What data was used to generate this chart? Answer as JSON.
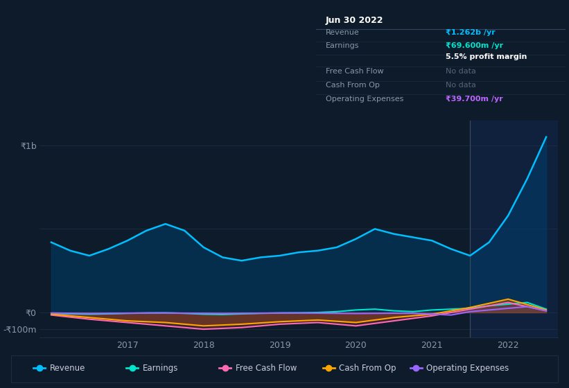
{
  "bg_color": "#0d1b2a",
  "tooltip_bg": "#0a0f1a",
  "title_date": "Jun 30 2022",
  "ylim": [
    -150000000,
    1150000000
  ],
  "yticks_labels": [
    "₹1b",
    "₹0",
    "-₹100m"
  ],
  "yticks_values": [
    1000000000,
    0,
    -100000000
  ],
  "xlabel_years": [
    "2017",
    "2018",
    "2019",
    "2020",
    "2021",
    "2022"
  ],
  "legend": [
    {
      "label": "Revenue",
      "color": "#00bfff"
    },
    {
      "label": "Earnings",
      "color": "#00e5cc"
    },
    {
      "label": "Free Cash Flow",
      "color": "#ff69b4"
    },
    {
      "label": "Cash From Op",
      "color": "#ffa500"
    },
    {
      "label": "Operating Expenses",
      "color": "#9966ff"
    }
  ],
  "revenue_color": "#00bfff",
  "earnings_color": "#00e5cc",
  "cashflow_color": "#ff69b4",
  "cashfromop_color": "#ffa500",
  "opex_color": "#9966ff",
  "vertical_line_x": 2021.5,
  "xlim": [
    2015.85,
    2022.65
  ],
  "revenue_x": [
    2016.0,
    2016.25,
    2016.5,
    2016.75,
    2017.0,
    2017.25,
    2017.5,
    2017.75,
    2018.0,
    2018.25,
    2018.5,
    2018.75,
    2019.0,
    2019.25,
    2019.5,
    2019.75,
    2020.0,
    2020.25,
    2020.5,
    2020.75,
    2021.0,
    2021.25,
    2021.5,
    2021.75,
    2022.0,
    2022.25,
    2022.5
  ],
  "revenue_y": [
    420000000,
    370000000,
    340000000,
    380000000,
    430000000,
    490000000,
    530000000,
    490000000,
    390000000,
    330000000,
    310000000,
    330000000,
    340000000,
    360000000,
    370000000,
    390000000,
    440000000,
    500000000,
    470000000,
    450000000,
    430000000,
    380000000,
    340000000,
    420000000,
    580000000,
    800000000,
    1050000000
  ],
  "earnings_x": [
    2016.0,
    2016.25,
    2016.5,
    2016.75,
    2017.0,
    2017.25,
    2017.5,
    2017.75,
    2018.0,
    2018.25,
    2018.5,
    2018.75,
    2019.0,
    2019.25,
    2019.5,
    2019.75,
    2020.0,
    2020.25,
    2020.5,
    2020.75,
    2021.0,
    2021.25,
    2021.5,
    2021.75,
    2022.0,
    2022.25,
    2022.5
  ],
  "earnings_y": [
    -5000000,
    -8000000,
    -10000000,
    -8000000,
    -5000000,
    -3000000,
    -2000000,
    -5000000,
    -10000000,
    -12000000,
    -8000000,
    -5000000,
    -3000000,
    -2000000,
    0,
    5000000,
    15000000,
    20000000,
    10000000,
    5000000,
    15000000,
    20000000,
    25000000,
    40000000,
    50000000,
    60000000,
    20000000
  ],
  "cashflow_x": [
    2016.0,
    2016.5,
    2017.0,
    2017.5,
    2018.0,
    2018.5,
    2019.0,
    2019.5,
    2020.0,
    2020.5,
    2021.0,
    2021.5,
    2022.0,
    2022.5
  ],
  "cashflow_y": [
    -15000000,
    -40000000,
    -60000000,
    -80000000,
    -100000000,
    -90000000,
    -70000000,
    -60000000,
    -80000000,
    -50000000,
    -20000000,
    20000000,
    60000000,
    10000000
  ],
  "cashfromop_x": [
    2016.0,
    2016.5,
    2017.0,
    2017.5,
    2018.0,
    2018.5,
    2019.0,
    2019.5,
    2020.0,
    2020.5,
    2021.0,
    2021.5,
    2022.0,
    2022.5
  ],
  "cashfromop_y": [
    -10000000,
    -30000000,
    -50000000,
    -60000000,
    -80000000,
    -70000000,
    -55000000,
    -45000000,
    -60000000,
    -30000000,
    -10000000,
    30000000,
    80000000,
    15000000
  ],
  "opex_x": [
    2016.0,
    2016.25,
    2016.5,
    2016.75,
    2017.0,
    2017.25,
    2017.5,
    2017.75,
    2018.0,
    2018.25,
    2018.5,
    2018.75,
    2019.0,
    2019.25,
    2019.5,
    2019.75,
    2020.0,
    2020.25,
    2020.5,
    2020.75,
    2021.0,
    2021.25,
    2021.5,
    2021.75,
    2022.0,
    2022.25,
    2022.5
  ],
  "opex_y": [
    -3000000,
    -5000000,
    -6000000,
    -5000000,
    -4000000,
    -3000000,
    -3000000,
    -4000000,
    -5000000,
    -6000000,
    -5000000,
    -4000000,
    -3000000,
    -3000000,
    -4000000,
    -5000000,
    -6000000,
    -5000000,
    -4000000,
    -5000000,
    -10000000,
    -15000000,
    5000000,
    15000000,
    25000000,
    35000000,
    10000000
  ],
  "grid_color": "#1e2d40",
  "spine_color": "#1e2d40",
  "tick_label_color": "#8899aa",
  "legend_label_color": "#ccccdd",
  "tooltip_rows": [
    {
      "label": "Jun 30 2022",
      "value": null,
      "value_color": null,
      "is_header": true
    },
    {
      "label": "Revenue",
      "value": "₹1.262b /yr",
      "value_color": "#00bfff",
      "is_header": false
    },
    {
      "label": "Earnings",
      "value": "₹69.600m /yr",
      "value_color": "#00e5cc",
      "is_header": false
    },
    {
      "label": "",
      "value": "5.5% profit margin",
      "value_color": "#ffffff",
      "is_header": false,
      "value_bold": true
    },
    {
      "label": "Free Cash Flow",
      "value": "No data",
      "value_color": "#556677",
      "is_header": false
    },
    {
      "label": "Cash From Op",
      "value": "No data",
      "value_color": "#556677",
      "is_header": false
    },
    {
      "label": "Operating Expenses",
      "value": "₹39.700m /yr",
      "value_color": "#bb66ff",
      "is_header": false
    }
  ]
}
